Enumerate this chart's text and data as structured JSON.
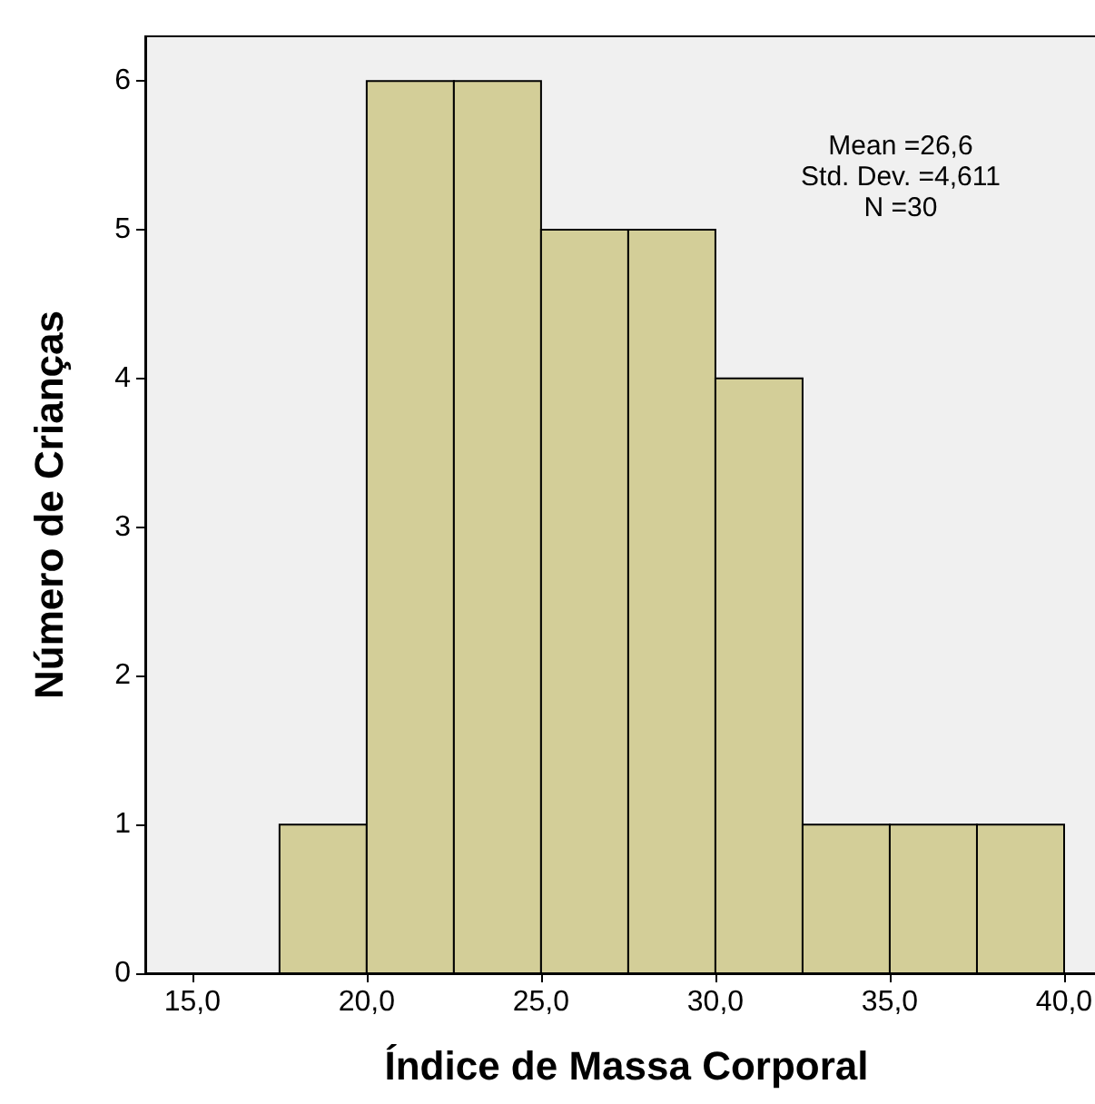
{
  "chart_data": {
    "type": "histogram",
    "xlabel": "Índice de Massa Corporal",
    "ylabel": "Número de Crianças",
    "bins": [
      17.5,
      20,
      22.5,
      25,
      27.5,
      30,
      32.5,
      35,
      37.5,
      40
    ],
    "values": [
      1,
      6,
      6,
      5,
      5,
      4,
      1,
      1,
      1
    ],
    "color": "#d3ce98",
    "xlim": [
      13.65,
      41.25
    ],
    "xticks": [
      {
        "value": 15,
        "label": "15,0"
      },
      {
        "value": 20,
        "label": "20,0"
      },
      {
        "value": 25,
        "label": "25,0"
      },
      {
        "value": 30,
        "label": "30,0"
      },
      {
        "value": 35,
        "label": "35,0"
      },
      {
        "value": 40,
        "label": "40,0"
      }
    ],
    "ylim": [
      0,
      6.3
    ],
    "yticks": [
      0,
      1,
      2,
      3,
      4,
      5,
      6
    ],
    "grid": false,
    "annotations": [
      "Mean =26,6",
      "Std. Dev. =4,611",
      "N =30"
    ]
  }
}
